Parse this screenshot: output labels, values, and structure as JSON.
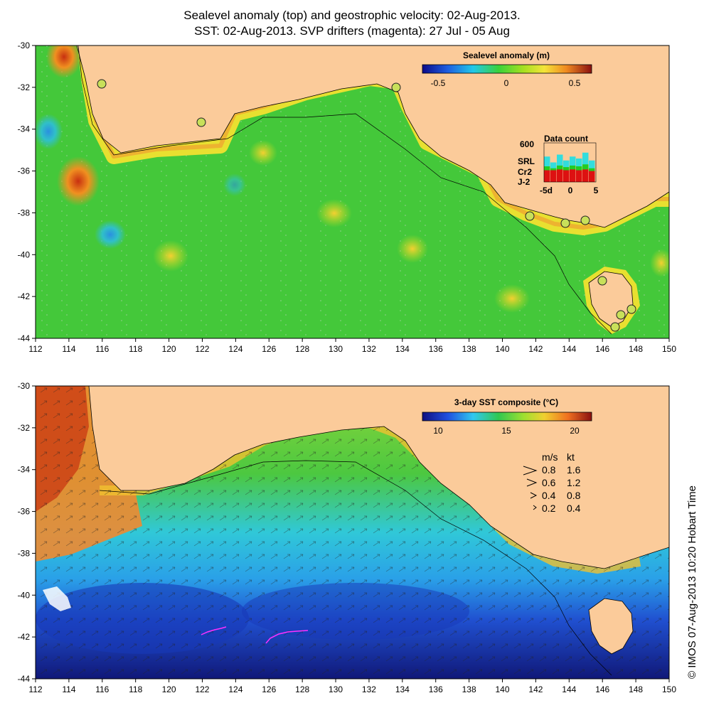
{
  "title_line1": "Sealevel anomaly (top) and geostrophic velocity: 02-Aug-2013.",
  "title_line2": "SST: 02-Aug-2013. SVP drifters (magenta): 27 Jul - 05 Aug",
  "x_ticks": [
    "112",
    "114",
    "116",
    "118",
    "120",
    "122",
    "124",
    "126",
    "128",
    "130",
    "132",
    "134",
    "136",
    "138",
    "140",
    "142",
    "144",
    "146",
    "148",
    "150"
  ],
  "y_ticks": [
    "-30",
    "-32",
    "-34",
    "-36",
    "-38",
    "-40",
    "-42",
    "-44"
  ],
  "top_panel": {
    "colorbar_title": "Sealevel anomaly (m)",
    "colorbar_ticks": [
      "-0.5",
      "0",
      "0.5"
    ],
    "data_count": {
      "title": "Data count",
      "max_label": "600",
      "series": [
        {
          "name": "SRL",
          "color": "#33dddd"
        },
        {
          "name": "Cr2",
          "color": "#22cc22"
        },
        {
          "name": "J-2",
          "color": "#dd1111"
        }
      ],
      "x_ticks": [
        "-5d",
        "0",
        "5"
      ],
      "bars": [
        {
          "j2": 0.3,
          "cr2": 0.4,
          "srl": 0.65
        },
        {
          "j2": 0.3,
          "cr2": 0.35,
          "srl": 0.5
        },
        {
          "j2": 0.32,
          "cr2": 0.42,
          "srl": 0.7
        },
        {
          "j2": 0.3,
          "cr2": 0.38,
          "srl": 0.55
        },
        {
          "j2": 0.32,
          "cr2": 0.42,
          "srl": 0.65
        },
        {
          "j2": 0.3,
          "cr2": 0.4,
          "srl": 0.6
        },
        {
          "j2": 0.32,
          "cr2": 0.45,
          "srl": 0.75
        },
        {
          "j2": 0.28,
          "cr2": 0.35,
          "srl": 0.55
        }
      ]
    }
  },
  "bottom_panel": {
    "colorbar_title": "3-day SST composite (°C)",
    "colorbar_ticks": [
      "10",
      "15",
      "20"
    ],
    "velocity_key": {
      "header_ms": "m/s",
      "header_kt": "kt",
      "rows": [
        {
          "ms": "0.8",
          "kt": "1.6"
        },
        {
          "ms": "0.6",
          "kt": "1.2"
        },
        {
          "ms": "0.4",
          "kt": "0.8"
        },
        {
          "ms": "0.2",
          "kt": "0.4"
        }
      ]
    }
  },
  "stamp": "© IMOS 07-Aug-2013 10:20 Hobart Time"
}
